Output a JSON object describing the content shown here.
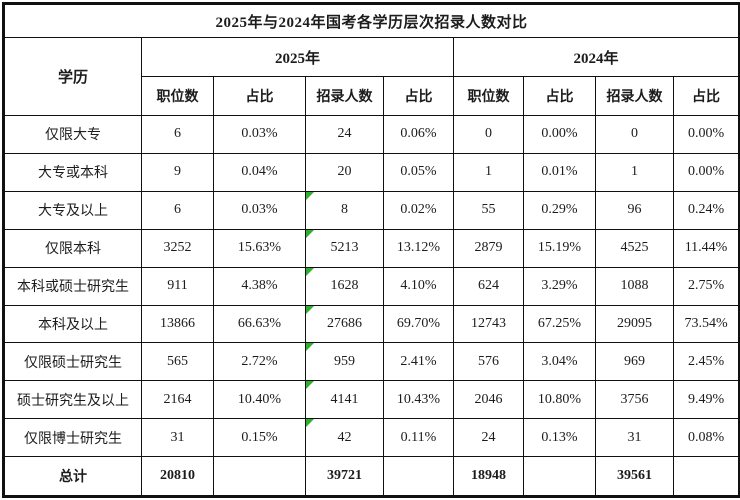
{
  "title": "2025年与2024年国考各学历层次招录人数对比",
  "table": {
    "corner_header": "学历",
    "year_groups": [
      "2025年",
      "2024年"
    ],
    "sub_headers": [
      "职位数",
      "占比",
      "招录人数",
      "占比"
    ],
    "rows": [
      {
        "label": "仅限大专",
        "cells": [
          "6",
          "0.03%",
          "24",
          "0.06%",
          "0",
          "0.00%",
          "0",
          "0.00%"
        ],
        "markers": []
      },
      {
        "label": "大专或本科",
        "cells": [
          "9",
          "0.04%",
          "20",
          "0.05%",
          "1",
          "0.01%",
          "1",
          "0.00%"
        ],
        "markers": []
      },
      {
        "label": "大专及以上",
        "cells": [
          "6",
          "0.03%",
          "8",
          "0.02%",
          "55",
          "0.29%",
          "96",
          "0.24%"
        ],
        "markers": [
          2
        ]
      },
      {
        "label": "仅限本科",
        "cells": [
          "3252",
          "15.63%",
          "5213",
          "13.12%",
          "2879",
          "15.19%",
          "4525",
          "11.44%"
        ],
        "markers": [
          2
        ]
      },
      {
        "label": "本科或硕士研究生",
        "cells": [
          "911",
          "4.38%",
          "1628",
          "4.10%",
          "624",
          "3.29%",
          "1088",
          "2.75%"
        ],
        "markers": [
          2
        ]
      },
      {
        "label": "本科及以上",
        "cells": [
          "13866",
          "66.63%",
          "27686",
          "69.70%",
          "12743",
          "67.25%",
          "29095",
          "73.54%"
        ],
        "markers": [
          2
        ]
      },
      {
        "label": "仅限硕士研究生",
        "cells": [
          "565",
          "2.72%",
          "959",
          "2.41%",
          "576",
          "3.04%",
          "969",
          "2.45%"
        ],
        "markers": [
          2
        ]
      },
      {
        "label": "硕士研究生及以上",
        "cells": [
          "2164",
          "10.40%",
          "4141",
          "10.43%",
          "2046",
          "10.80%",
          "3756",
          "9.49%"
        ],
        "markers": [
          2
        ]
      },
      {
        "label": "仅限博士研究生",
        "cells": [
          "31",
          "0.15%",
          "42",
          "0.11%",
          "24",
          "0.13%",
          "31",
          "0.08%"
        ],
        "markers": [
          2
        ]
      },
      {
        "label": "总计",
        "cells": [
          "20810",
          "",
          "39721",
          "",
          "18948",
          "",
          "39561",
          ""
        ],
        "markers": [],
        "bold": true
      }
    ]
  },
  "colors": {
    "marker_green": "#2fae2f",
    "border": "#101010",
    "text": "#1c1c1c",
    "background": "#ffffff"
  },
  "chart_data": {
    "type": "table",
    "title": "2025年与2024年国考各学历层次招录人数对比",
    "columns": [
      "学历",
      "2025年 职位数",
      "2025年 占比",
      "2025年 招录人数",
      "2025年 占比",
      "2024年 职位数",
      "2024年 占比",
      "2024年 招录人数",
      "2024年 占比"
    ],
    "rows": [
      [
        "仅限大专",
        6,
        "0.03%",
        24,
        "0.06%",
        0,
        "0.00%",
        0,
        "0.00%"
      ],
      [
        "大专或本科",
        9,
        "0.04%",
        20,
        "0.05%",
        1,
        "0.01%",
        1,
        "0.00%"
      ],
      [
        "大专及以上",
        6,
        "0.03%",
        8,
        "0.02%",
        55,
        "0.29%",
        96,
        "0.24%"
      ],
      [
        "仅限本科",
        3252,
        "15.63%",
        5213,
        "13.12%",
        2879,
        "15.19%",
        4525,
        "11.44%"
      ],
      [
        "本科或硕士研究生",
        911,
        "4.38%",
        1628,
        "4.10%",
        624,
        "3.29%",
        1088,
        "2.75%"
      ],
      [
        "本科及以上",
        13866,
        "66.63%",
        27686,
        "69.70%",
        12743,
        "67.25%",
        29095,
        "73.54%"
      ],
      [
        "仅限硕士研究生",
        565,
        "2.72%",
        959,
        "2.41%",
        576,
        "3.04%",
        969,
        "2.45%"
      ],
      [
        "硕士研究生及以上",
        2164,
        "10.40%",
        4141,
        "10.43%",
        2046,
        "10.80%",
        3756,
        "9.49%"
      ],
      [
        "仅限博士研究生",
        31,
        "0.15%",
        42,
        "0.11%",
        24,
        "0.13%",
        31,
        "0.08%"
      ],
      [
        "总计",
        20810,
        "",
        39721,
        "",
        18948,
        "",
        39561,
        ""
      ]
    ]
  }
}
